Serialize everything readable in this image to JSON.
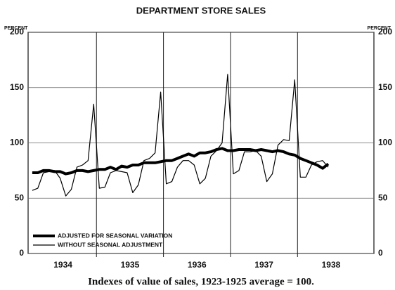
{
  "chart_data": {
    "type": "line",
    "title": "DEPARTMENT STORE SALES",
    "y_label_left": "PERCENT",
    "y_label_right": "PERCENT",
    "caption": "Indexes of value of sales, 1923-1925 average = 100.",
    "x": [
      1934.042,
      1934.125,
      1934.208,
      1934.292,
      1934.375,
      1934.458,
      1934.542,
      1934.625,
      1934.708,
      1934.792,
      1934.875,
      1934.958,
      1935.042,
      1935.125,
      1935.208,
      1935.292,
      1935.375,
      1935.458,
      1935.542,
      1935.625,
      1935.708,
      1935.792,
      1935.875,
      1935.958,
      1936.042,
      1936.125,
      1936.208,
      1936.292,
      1936.375,
      1936.458,
      1936.542,
      1936.625,
      1936.708,
      1936.792,
      1936.875,
      1936.958,
      1937.042,
      1937.125,
      1937.208,
      1937.292,
      1937.375,
      1937.458,
      1937.542,
      1937.625,
      1937.708,
      1937.792,
      1937.875,
      1937.958,
      1938.042,
      1938.125,
      1938.208,
      1938.292,
      1938.375,
      1938.458
    ],
    "series": [
      {
        "name": "ADJUSTED FOR SEASONAL VARIATION",
        "color": "#000000",
        "width": 4,
        "values": [
          73,
          73,
          75,
          75,
          74,
          74,
          72,
          73,
          75,
          75,
          74,
          75,
          76,
          76,
          78,
          76,
          79,
          78,
          80,
          80,
          82,
          82,
          82,
          83,
          84,
          84,
          86,
          88,
          90,
          88,
          91,
          91,
          92,
          94,
          95,
          93,
          93,
          94,
          94,
          94,
          93,
          94,
          93,
          92,
          93,
          92,
          90,
          89,
          86,
          84,
          82,
          80,
          77,
          81
        ]
      },
      {
        "name": "WITHOUT SEASONAL ADJUSTMENT",
        "color": "#000000",
        "width": 1.2,
        "values": [
          57,
          59,
          73,
          74,
          75,
          68,
          52,
          58,
          78,
          80,
          84,
          135,
          59,
          60,
          73,
          75,
          74,
          73,
          55,
          62,
          84,
          86,
          91,
          146,
          63,
          65,
          78,
          84,
          84,
          80,
          63,
          68,
          88,
          93,
          100,
          162,
          72,
          75,
          92,
          92,
          93,
          88,
          65,
          72,
          98,
          103,
          102,
          157,
          69,
          69,
          80,
          83,
          84,
          78
        ]
      }
    ],
    "xlim": [
      1933.98,
      1939.14
    ],
    "xticks": [
      {
        "value": 1934.5,
        "label": "1934"
      },
      {
        "value": 1935.5,
        "label": "1935"
      },
      {
        "value": 1936.5,
        "label": "1936"
      },
      {
        "value": 1937.5,
        "label": "1937"
      },
      {
        "value": 1938.5,
        "label": "1938"
      }
    ],
    "xgrid": [
      1935,
      1936,
      1937,
      1938
    ],
    "ylim": [
      0,
      200
    ],
    "yticks": [
      0,
      50,
      100,
      150,
      200
    ],
    "grid": true,
    "legend": "lower left"
  }
}
